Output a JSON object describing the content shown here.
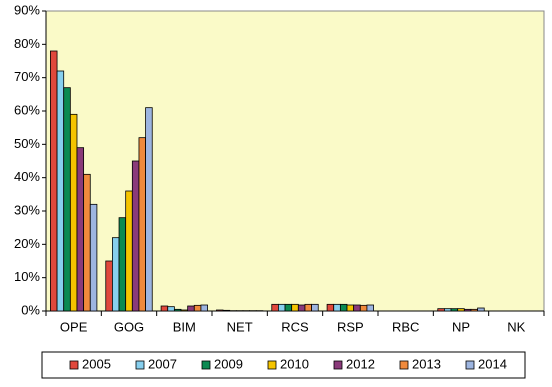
{
  "chart_data": {
    "type": "bar",
    "categories": [
      "OPE",
      "GOG",
      "BIM",
      "NET",
      "RCS",
      "RSP",
      "RBC",
      "NP",
      "NK"
    ],
    "series": [
      {
        "name": "2005",
        "color": "#e0483c",
        "values": [
          78,
          15,
          1.5,
          0.3,
          2,
          2,
          0,
          0.7,
          0
        ]
      },
      {
        "name": "2007",
        "color": "#87cfee",
        "values": [
          72,
          22,
          1.3,
          0.2,
          2,
          2,
          0,
          0.7,
          0
        ]
      },
      {
        "name": "2009",
        "color": "#0b8a52",
        "values": [
          67,
          28,
          0.5,
          0.1,
          2,
          2,
          0,
          0.7,
          0
        ]
      },
      {
        "name": "2010",
        "color": "#f5c400",
        "values": [
          59,
          36,
          0.3,
          0.1,
          2,
          1.8,
          0,
          0.7,
          0
        ]
      },
      {
        "name": "2012",
        "color": "#8a3a7a",
        "values": [
          49,
          45,
          1.5,
          0.1,
          1.8,
          1.8,
          0,
          0.5,
          0
        ]
      },
      {
        "name": "2013",
        "color": "#f08a3c",
        "values": [
          41,
          52,
          1.7,
          0.1,
          2,
          1.7,
          0,
          0.5,
          0
        ]
      },
      {
        "name": "2014",
        "color": "#9db5e0",
        "values": [
          32,
          61,
          1.8,
          0.1,
          2,
          1.8,
          0,
          0.9,
          0
        ]
      }
    ],
    "ylim": [
      0,
      90
    ],
    "yticks": [
      {
        "value": 0,
        "label": "0%"
      },
      {
        "value": 10,
        "label": "10%"
      },
      {
        "value": 20,
        "label": "20%"
      },
      {
        "value": 30,
        "label": "30%"
      },
      {
        "value": 40,
        "label": "40%"
      },
      {
        "value": 50,
        "label": "50%"
      },
      {
        "value": 60,
        "label": "60%"
      },
      {
        "value": 70,
        "label": "70%"
      },
      {
        "value": 80,
        "label": "80%"
      },
      {
        "value": 90,
        "label": "90%"
      }
    ],
    "grid": false,
    "legend": "bottom"
  }
}
